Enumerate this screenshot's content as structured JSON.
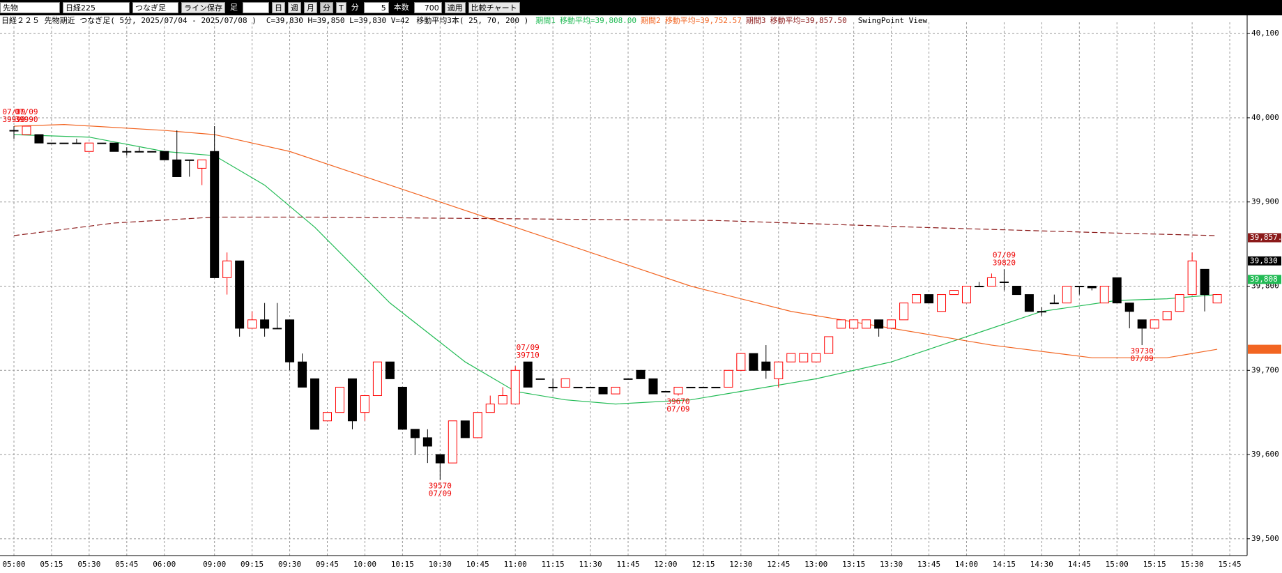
{
  "toolbar": {
    "market": "先物",
    "index": "日経225",
    "mode": "つなぎ足",
    "save": "ライン保存",
    "ashi": "足",
    "day": "日",
    "week": "週",
    "month": "月",
    "minute": "分",
    "tick": "T",
    "unit": "分",
    "interval": "5",
    "count_label": "本数",
    "count": "700",
    "apply": "適用",
    "compare": "比較チャート"
  },
  "chart_data": {
    "type": "candlestick",
    "header": {
      "instrument": "日経２２５ 先物期近 つなぎ足( 5分, 2025/07/04 - 2025/07/08 )",
      "ohlcv": "C=39,830 H=39,850 L=39,830 V=42",
      "ma_title": "移動平均3本( 25, 70, 200 )",
      "view": "SwingPoint View"
    },
    "categories": [
      "05:00",
      null,
      null,
      "05:15",
      null,
      null,
      "05:30",
      null,
      null,
      "05:45",
      null,
      null,
      "06:00",
      null,
      null,
      null,
      "09:00",
      null,
      null,
      "09:15",
      null,
      null,
      "09:30",
      null,
      null,
      "09:45",
      null,
      null,
      "10:00",
      null,
      null,
      "10:15",
      null,
      null,
      "10:30",
      null,
      null,
      "10:45",
      null,
      null,
      "11:00",
      null,
      null,
      "11:15",
      null,
      null,
      "11:30",
      null,
      null,
      "11:45",
      null,
      null,
      "12:00",
      null,
      null,
      "12:15",
      null,
      null,
      "12:30",
      null,
      null,
      "12:45",
      null,
      null,
      "13:00",
      null,
      null,
      "13:15",
      null,
      null,
      "13:30",
      null,
      null,
      "13:45",
      null,
      null,
      "14:00",
      null,
      null,
      "14:15",
      null,
      null,
      "14:30",
      null,
      null,
      "14:45",
      null,
      null,
      "15:00",
      null,
      null,
      "15:15",
      null,
      null,
      "15:30",
      null,
      null,
      "15:45"
    ],
    "open": [
      39985,
      39980,
      39980,
      39970,
      39970,
      39970,
      39960,
      39970,
      39970,
      39960,
      39960,
      39960,
      39960,
      39950,
      39950,
      39940,
      39960,
      39810,
      39830,
      39750,
      39760,
      39750,
      39760,
      39710,
      39690,
      39640,
      39650,
      39690,
      39650,
      39670,
      39710,
      39680,
      39630,
      39620,
      39600,
      39590,
      39640,
      39620,
      39650,
      39660,
      39660,
      39710,
      39690,
      39680,
      39680,
      39680,
      39680,
      39680,
      39672,
      39690,
      39700,
      39690,
      39675,
      39672,
      39680,
      39680,
      39680,
      39680,
      39700,
      39720,
      39710,
      39690,
      39710,
      39710,
      39710,
      39720,
      39750,
      39750,
      39750,
      39760,
      39750,
      39760,
      39780,
      39790,
      39770,
      39790,
      39780,
      39800,
      39800,
      39805,
      39800,
      39790,
      39770,
      39780,
      39780,
      39800,
      39800,
      39780,
      39810,
      39780,
      39760,
      39750,
      39760,
      39770,
      39790,
      39820,
      39780,
      null
    ],
    "high": [
      39990,
      39990,
      39980,
      39970,
      39970,
      39975,
      39970,
      39970,
      39970,
      39965,
      39965,
      39960,
      39960,
      39985,
      39950,
      39950,
      39990,
      39840,
      39830,
      39770,
      39780,
      39780,
      39760,
      39720,
      39690,
      39650,
      39680,
      39690,
      39670,
      39710,
      39710,
      39680,
      39630,
      39630,
      39600,
      39640,
      39640,
      39650,
      39670,
      39680,
      39705,
      39710,
      39690,
      39690,
      39690,
      39680,
      39680,
      39680,
      39680,
      39690,
      39700,
      39690,
      39675,
      39680,
      39680,
      39680,
      39680,
      39700,
      39720,
      39720,
      39730,
      39710,
      39720,
      39720,
      39720,
      39740,
      39760,
      39760,
      39760,
      39760,
      39760,
      39780,
      39790,
      39790,
      39790,
      39795,
      39800,
      39805,
      39815,
      39820,
      39800,
      39790,
      39775,
      39790,
      39800,
      39800,
      39800,
      39800,
      39810,
      39780,
      39760,
      39760,
      39770,
      39790,
      39840,
      39820,
      39790,
      null
    ],
    "low": [
      39975,
      39980,
      39970,
      39970,
      39970,
      39970,
      39960,
      39970,
      39960,
      39955,
      39960,
      39960,
      39950,
      39930,
      39930,
      39920,
      39810,
      39790,
      39740,
      39750,
      39740,
      39750,
      39700,
      39680,
      39630,
      39640,
      39650,
      39630,
      39640,
      39670,
      39690,
      39630,
      39600,
      39590,
      39570,
      39590,
      39620,
      39620,
      39650,
      39660,
      39660,
      39680,
      39690,
      39675,
      39680,
      39680,
      39680,
      39672,
      39672,
      39690,
      39690,
      39672,
      39675,
      39670,
      39680,
      39680,
      39680,
      39680,
      39700,
      39700,
      39690,
      39680,
      39710,
      39710,
      39710,
      39720,
      39750,
      39750,
      39750,
      39740,
      39750,
      39760,
      39780,
      39780,
      39770,
      39790,
      39780,
      39800,
      39800,
      39795,
      39790,
      39770,
      39765,
      39780,
      39780,
      39790,
      39795,
      39780,
      39780,
      39750,
      39730,
      39750,
      39760,
      39770,
      39790,
      39770,
      39780,
      null
    ],
    "close": [
      39985,
      39990,
      39970,
      39970,
      39970,
      39970,
      39970,
      39970,
      39960,
      39960,
      39960,
      39960,
      39950,
      39930,
      39950,
      39950,
      39810,
      39830,
      39750,
      39760,
      39750,
      39750,
      39710,
      39680,
      39630,
      39650,
      39680,
      39640,
      39670,
      39710,
      39690,
      39630,
      39620,
      39610,
      39590,
      39640,
      39620,
      39650,
      39660,
      39670,
      39700,
      39680,
      39690,
      39680,
      39690,
      39680,
      39680,
      39672,
      39680,
      39690,
      39690,
      39672,
      39675,
      39680,
      39680,
      39680,
      39680,
      39700,
      39720,
      39700,
      39700,
      39710,
      39720,
      39720,
      39720,
      39740,
      39760,
      39760,
      39760,
      39750,
      39760,
      39780,
      39790,
      39780,
      39790,
      39795,
      39800,
      39800,
      39810,
      39805,
      39790,
      39770,
      39770,
      39780,
      39800,
      39800,
      39798,
      39800,
      39780,
      39770,
      39750,
      39760,
      39770,
      39790,
      39830,
      39790,
      39790,
      null
    ],
    "up_color": "#ff0000",
    "down_color": "#000000",
    "moving_averages": [
      {
        "name": "期間1",
        "label": "移動平均=39,808.00",
        "color": "#22bb55",
        "dashed": false,
        "tag": {
          "value": 39808,
          "label": "39,808"
        },
        "x": [
          0,
          6,
          12,
          16,
          20,
          24,
          30,
          36,
          40,
          44,
          48,
          54,
          58,
          64,
          70,
          76,
          82,
          88,
          92,
          96
        ],
        "values": [
          39980,
          39977,
          39960,
          39955,
          39920,
          39870,
          39780,
          39710,
          39675,
          39665,
          39660,
          39665,
          39675,
          39690,
          39710,
          39740,
          39770,
          39783,
          39785,
          39790
        ]
      },
      {
        "name": "期間2",
        "label": "移動平均=39,752.57",
        "color": "#f26522",
        "dashed": false,
        "x": [
          0,
          4,
          12,
          16,
          22,
          30,
          38,
          46,
          54,
          62,
          70,
          78,
          86,
          92,
          96
        ],
        "values": [
          39990,
          39992,
          39985,
          39980,
          39960,
          39920,
          39880,
          39840,
          39800,
          39770,
          39750,
          39730,
          39715,
          39715,
          39725
        ]
      },
      {
        "name": "期間3",
        "label": "移動平均=39,857.50",
        "color": "#8b1a1a",
        "dashed": true,
        "tag": {
          "value": 39857.5,
          "label": "39,857."
        },
        "x": [
          0,
          8,
          16,
          24,
          40,
          56,
          72,
          88,
          96
        ],
        "values": [
          39860,
          39875,
          39882,
          39882,
          39880,
          39878,
          39870,
          39863,
          39860
        ]
      }
    ],
    "last_price": {
      "value": 39830,
      "label": "39,830"
    },
    "annotations": [
      {
        "date": "07/09",
        "value": 39990
      },
      {
        "date": "07/09",
        "value": 39990
      },
      {
        "date": "07/09",
        "value": 39570
      },
      {
        "date": "07/09",
        "value": 39710
      },
      {
        "date": "07/09",
        "value": 39670
      },
      {
        "date": "07/09",
        "value": 39820
      },
      {
        "date": "07/09",
        "value": 39730
      }
    ],
    "ylim": [
      39480,
      40120
    ],
    "yticks": [
      {
        "value": 39500,
        "label": "39,500"
      },
      {
        "value": 39600,
        "label": "39,600"
      },
      {
        "value": 39700,
        "label": "39,700"
      },
      {
        "value": 39800,
        "label": "39,800"
      },
      {
        "value": 39900,
        "label": "39,900"
      },
      {
        "value": 40000,
        "label": "40,000"
      },
      {
        "value": 40100,
        "label": "40,100"
      }
    ],
    "grid": true
  }
}
